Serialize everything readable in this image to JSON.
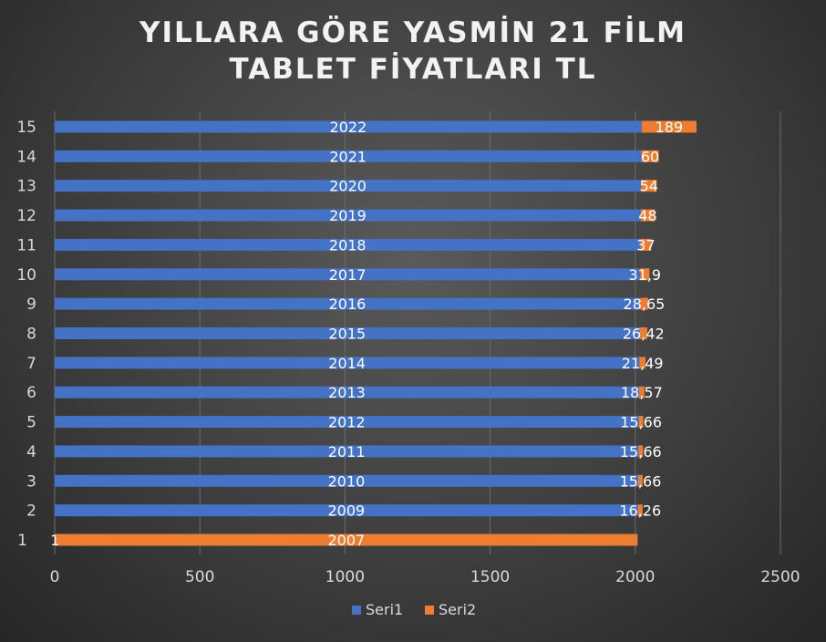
{
  "chart_data": {
    "type": "bar",
    "orientation": "horizontal",
    "stacked": true,
    "title_lines": [
      "YILLARA GÖRE YASMİN 21 FİLM",
      "TABLET FİYATLARI TL"
    ],
    "categories": [
      "1",
      "2",
      "3",
      "4",
      "5",
      "6",
      "7",
      "8",
      "9",
      "10",
      "11",
      "12",
      "13",
      "14",
      "15"
    ],
    "series": [
      {
        "name": "Seri1",
        "color": "#4472C4",
        "values": [
          1,
          2009,
          2010,
          2011,
          2012,
          2013,
          2014,
          2015,
          2016,
          2017,
          2018,
          2019,
          2020,
          2021,
          2022
        ],
        "labels": [
          "1",
          "2009",
          "2010",
          "2011",
          "2012",
          "2013",
          "2014",
          "2015",
          "2016",
          "2017",
          "2018",
          "2019",
          "2020",
          "2021",
          "2022"
        ]
      },
      {
        "name": "Seri2",
        "color": "#ED7D31",
        "values": [
          2007,
          16.26,
          15.66,
          15.66,
          15.66,
          18.57,
          21.49,
          26.42,
          28.65,
          31.9,
          37,
          48,
          54,
          60,
          189
        ],
        "labels": [
          "2007",
          "16,26",
          "15,66",
          "15,66",
          "15,66",
          "18,57",
          "21,49",
          "26,42",
          "28,65",
          "31,9",
          "37",
          "48",
          "54",
          "60",
          "189"
        ]
      }
    ],
    "xlim": [
      0,
      2500
    ],
    "xticks": [
      "0",
      "500",
      "1000",
      "1500",
      "2000",
      "2500"
    ],
    "grid": true,
    "legend_position": "bottom"
  }
}
